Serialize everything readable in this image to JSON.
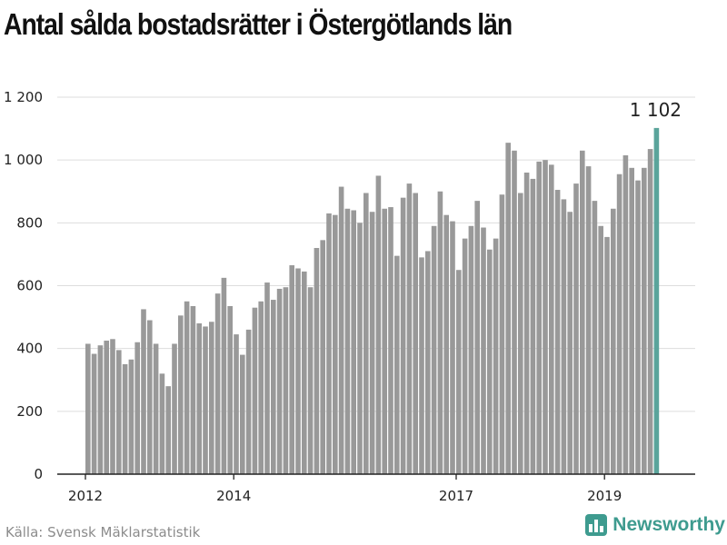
{
  "colors": {
    "bar": "#999999",
    "highlight": "#5aa49b",
    "grid": "#dddddd",
    "axis": "#222222",
    "brand": "#3e9b8f"
  },
  "footer": {
    "source": "Källa: Svensk Mäklarstatistik",
    "brand": "Newsworthy",
    "brand_icon": "bar-chart-logo-icon"
  },
  "chart_data": {
    "type": "bar",
    "title": "Antal sålda bostadsrätter i Östergötlands län",
    "xlabel": "",
    "ylabel": "",
    "ylim": [
      0,
      1200
    ],
    "yticks": [
      0,
      200,
      400,
      600,
      800,
      1000,
      1200
    ],
    "ytick_labels": [
      "0",
      "200",
      "400",
      "600",
      "800",
      "1 000",
      "1 200"
    ],
    "xtick_labels": [
      {
        "label": "2012",
        "index": 0
      },
      {
        "label": "2014",
        "index": 24
      },
      {
        "label": "2017",
        "index": 60
      },
      {
        "label": "2019",
        "index": 84
      }
    ],
    "grid": true,
    "highlight": {
      "index": 92,
      "label": "1 102"
    },
    "values": [
      415,
      383,
      410,
      425,
      430,
      395,
      350,
      365,
      420,
      525,
      490,
      415,
      320,
      280,
      415,
      505,
      550,
      535,
      480,
      470,
      485,
      575,
      625,
      535,
      445,
      380,
      460,
      530,
      550,
      610,
      555,
      590,
      595,
      665,
      655,
      645,
      595,
      720,
      745,
      830,
      825,
      915,
      845,
      840,
      800,
      895,
      835,
      950,
      845,
      850,
      695,
      880,
      925,
      895,
      690,
      710,
      790,
      900,
      825,
      805,
      650,
      750,
      790,
      870,
      785,
      715,
      750,
      890,
      1055,
      1030,
      895,
      960,
      940,
      995,
      1000,
      985,
      905,
      875,
      835,
      925,
      1030,
      980,
      870,
      790,
      755,
      845,
      955,
      1015,
      975,
      935,
      975,
      1035,
      1102
    ]
  }
}
